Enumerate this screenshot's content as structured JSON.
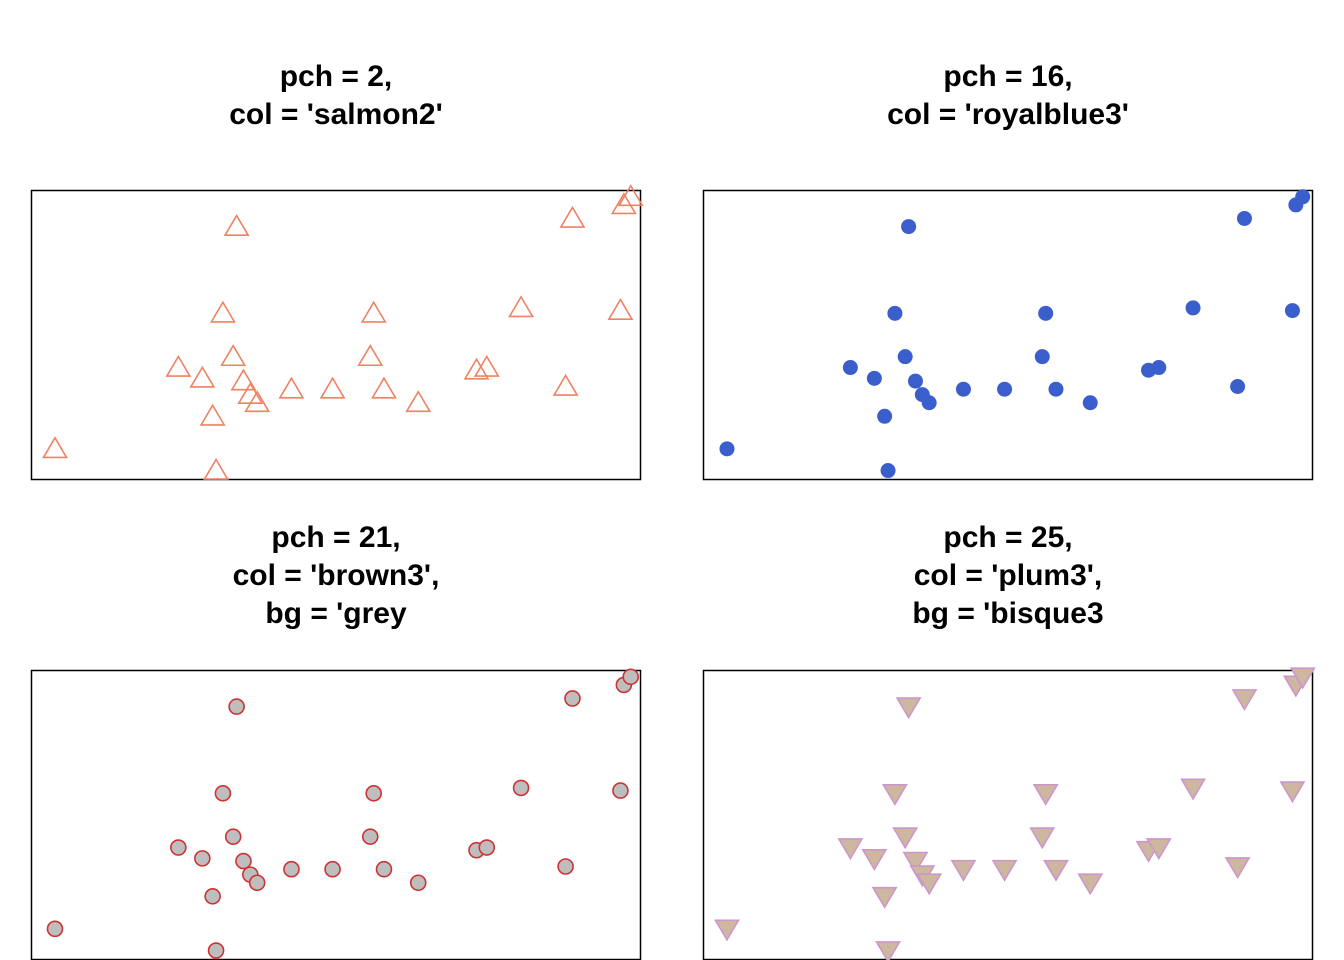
{
  "chart_data": [
    {
      "type": "scatter",
      "title_lines": [
        "pch = 2,",
        "col = 'salmon2'"
      ],
      "pch": 2,
      "col": "#EE8262",
      "bg": null
    },
    {
      "type": "scatter",
      "title_lines": [
        "pch = 16,",
        "col = 'royalblue3'"
      ],
      "pch": 16,
      "col": "#3A5FCD",
      "bg": null
    },
    {
      "type": "scatter",
      "title_lines": [
        "pch = 21,",
        "col = 'brown3',",
        "bg = 'grey"
      ],
      "pch": 21,
      "col": "#CD3333",
      "bg": "#BEBEBE"
    },
    {
      "type": "scatter",
      "title_lines": [
        "pch = 25,",
        "col = 'plum3',",
        "bg = 'bisque3"
      ],
      "pch": 25,
      "col": "#CD96CD",
      "bg": "#CDB79E"
    }
  ],
  "shared_points": {
    "x": [
      1.0,
      4.6,
      5.3,
      5.6,
      5.7,
      5.9,
      6.2,
      6.3,
      6.5,
      6.7,
      6.9,
      7.9,
      9.1,
      10.2,
      10.3,
      10.6,
      11.6,
      13.3,
      13.6,
      14.6,
      15.9,
      16.1,
      17.5,
      17.6,
      17.8
    ],
    "y": [
      0.8,
      3.8,
      3.4,
      2.0,
      0.0,
      5.8,
      4.2,
      9.0,
      3.3,
      2.8,
      2.5,
      3.0,
      3.0,
      4.2,
      5.8,
      3.0,
      2.5,
      3.7,
      3.8,
      6.0,
      3.1,
      9.3,
      5.9,
      9.8,
      10.1
    ],
    "xlim": [
      0.3,
      18.1
    ],
    "ylim": [
      -0.35,
      10.35
    ]
  }
}
